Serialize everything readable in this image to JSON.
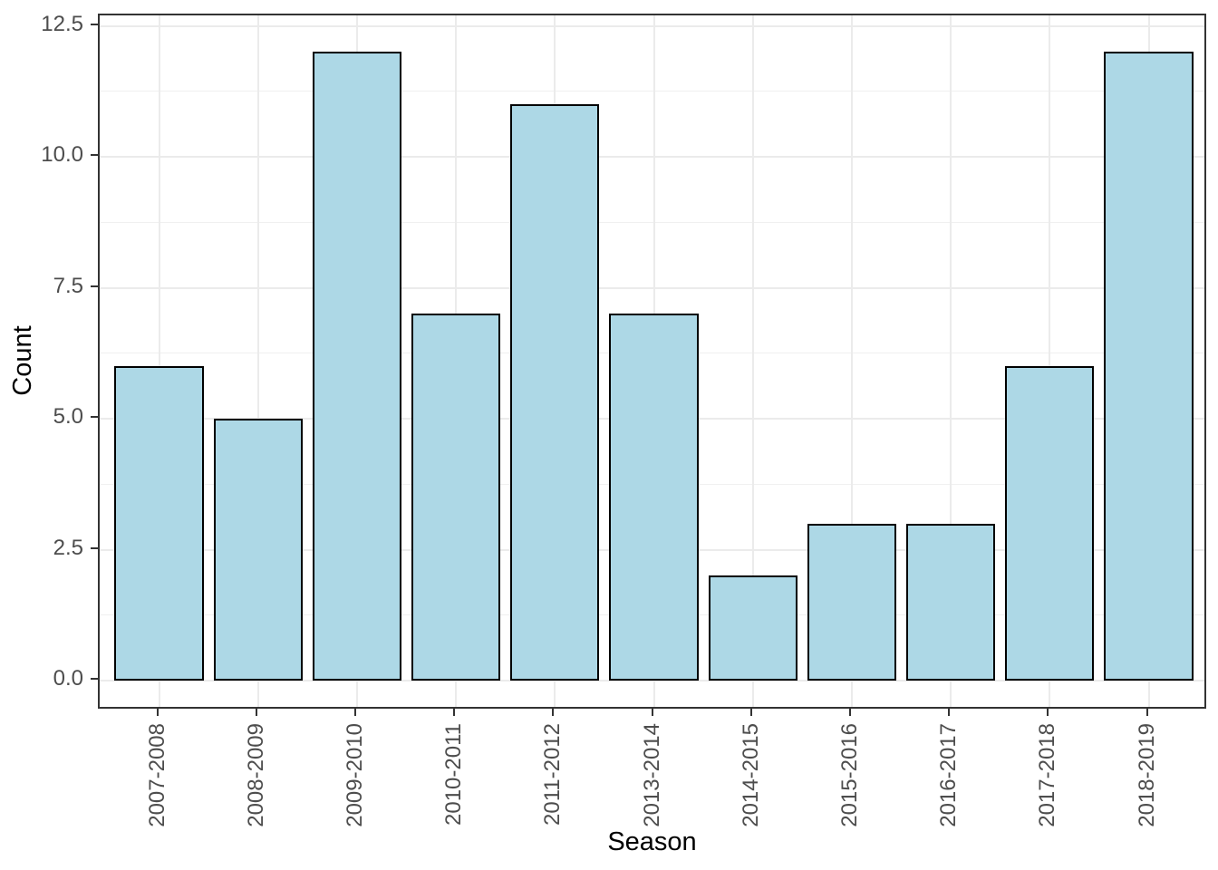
{
  "chart_data": {
    "type": "bar",
    "title": "",
    "xlabel": "Season",
    "ylabel": "Count",
    "categories": [
      "2007-2008",
      "2008-2009",
      "2009-2010",
      "2010-2011",
      "2011-2012",
      "2013-2014",
      "2014-2015",
      "2015-2016",
      "2016-2017",
      "2017-2018",
      "2018-2019"
    ],
    "values": [
      6,
      5,
      12,
      7,
      11,
      7,
      2,
      3,
      3,
      6,
      12
    ],
    "y_ticks": [
      0.0,
      2.5,
      5.0,
      7.5,
      10.0,
      12.5
    ],
    "y_tick_labels": [
      "0.0",
      "2.5",
      "5.0",
      "7.5",
      "10.0",
      "12.5"
    ],
    "y_minor_ticks": [
      1.25,
      3.75,
      6.25,
      8.75,
      11.25
    ],
    "ylim": [
      -0.6,
      12.6
    ],
    "grid": "major-and-minor",
    "legend": "none",
    "colors": {
      "bar_fill": "#ADD8E6",
      "bar_stroke": "#000000",
      "panel_border": "#333333",
      "grid_major": "#EBEBEB",
      "grid_minor": "#F0F0F0",
      "tick_mark": "#333333",
      "axis_text": "#4D4D4D",
      "axis_title": "#000000",
      "background": "#FFFFFF"
    }
  }
}
